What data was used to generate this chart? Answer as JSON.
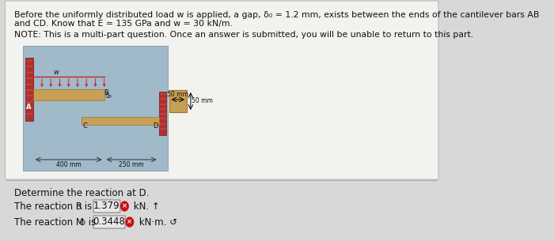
{
  "bg_color": "#d8d8d8",
  "inner_bg_color": "#f2f2ee",
  "title_line1": "Before the uniformly distributed load w is applied, a gap, δ₀ = 1.2 mm, exists between the ends of the cantilever bars AB",
  "title_line2": "and CD. Know that E = 135 GPa and w = 30 kN/m.",
  "note_text": "NOTE: This is a multi-part question. Once an answer is submitted, you will be unable to return to this part.",
  "determine_text": "Determine the reaction at D.",
  "result1_value": "1.379",
  "result2_value": "0.3448",
  "diagram_bg": "#a0baca",
  "wall_color_left": "#b03030",
  "beam_ab_color": "#c8a055",
  "beam_cd_color": "#c8a055",
  "cs_box_color": "#c8a055",
  "load_line_color": "#cc2222",
  "load_arrow_color": "#cc2222",
  "dim_arrow_color": "#333333",
  "answer_box_bg": "#e8e8e8",
  "answer_box_border": "#888888",
  "circle_red": "#cc1111",
  "text_dark": "#111111",
  "separator_color": "#aaaaaa",
  "font_size_title": 7.8,
  "font_size_note": 7.8,
  "font_size_body": 8.5,
  "font_size_diag": 6.0,
  "font_size_dim": 5.5
}
